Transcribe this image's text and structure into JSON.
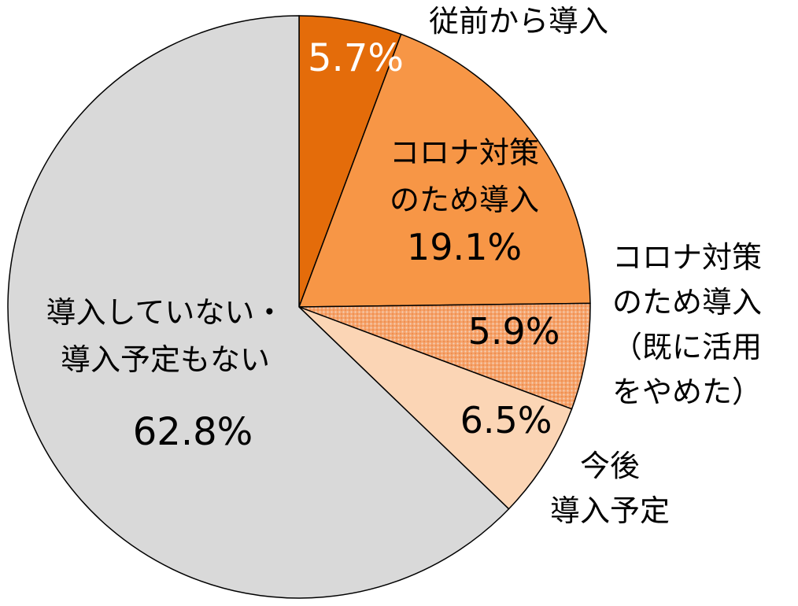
{
  "chart_data": {
    "type": "pie",
    "start": "12 o'clock",
    "direction": "clockwise",
    "slices": [
      {
        "label_lines": [
          "従前から導入"
        ],
        "value": 5.7,
        "value_label": "5.7%",
        "color": "#E46C0A",
        "value_color": "#ffffff",
        "pattern": false
      },
      {
        "label_lines": [
          "コロナ対策",
          "のため導入"
        ],
        "value": 19.1,
        "value_label": "19.1%",
        "color": "#F79646",
        "value_color": "#000000",
        "pattern": false
      },
      {
        "label_lines": [
          "コロナ対策",
          "のため導入",
          "（既に活用",
          "をやめた）"
        ],
        "value": 5.9,
        "value_label": "5.9%",
        "color": "#F8B183",
        "value_color": "#000000",
        "pattern": true
      },
      {
        "label_lines": [
          "今後",
          "導入予定"
        ],
        "value": 6.5,
        "value_label": "6.5%",
        "color": "#FBD5B5",
        "value_color": "#000000",
        "pattern": false
      },
      {
        "label_lines": [
          "導入していない・",
          "導入予定もない"
        ],
        "value": 62.8,
        "value_label": "62.8%",
        "color": "#D9D9D9",
        "value_color": "#000000",
        "pattern": false
      }
    ]
  }
}
